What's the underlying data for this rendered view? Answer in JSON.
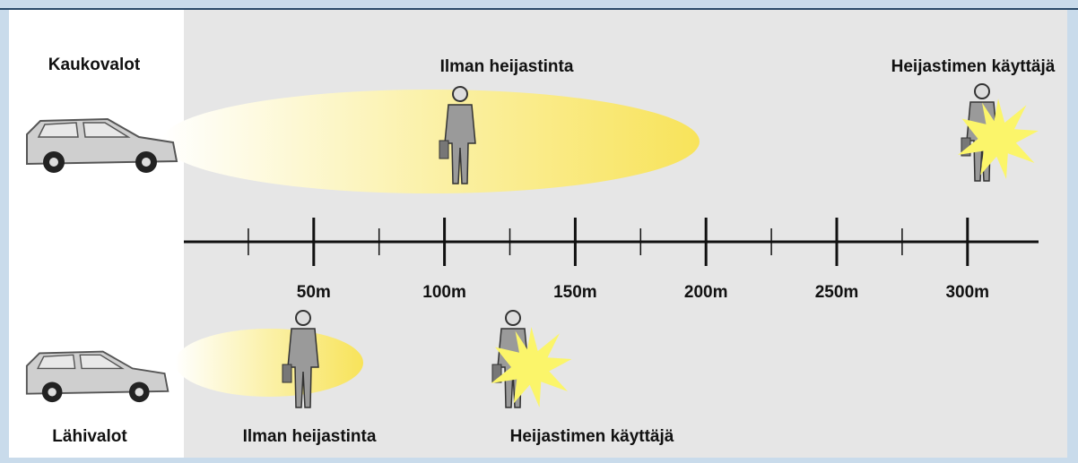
{
  "top": {
    "label": "Kaukovalot",
    "without_reflector": "Ilman heijastinta",
    "with_reflector": "Heijastimen käyttäjä"
  },
  "scale": {
    "labels": [
      "50m",
      "100m",
      "150m",
      "200m",
      "250m",
      "300m"
    ]
  },
  "bottom": {
    "label": "Lähivalot",
    "without_reflector": "Ilman heijastinta",
    "with_reflector": "Heijastimen käyttäjä"
  }
}
